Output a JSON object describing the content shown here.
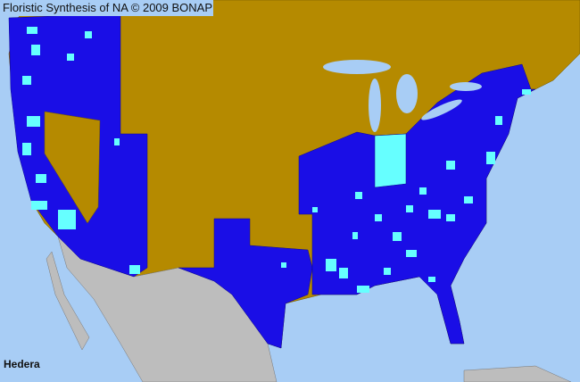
{
  "title": "Floristic Synthesis of NA © 2009 BONAP",
  "taxon": "Hedera",
  "colors": {
    "ocean": "#a8cdf5",
    "not_present": "#b58a00",
    "present_state": "#1a0ee6",
    "present_county": "#66ffff",
    "other_land": "#bdbdbd"
  }
}
